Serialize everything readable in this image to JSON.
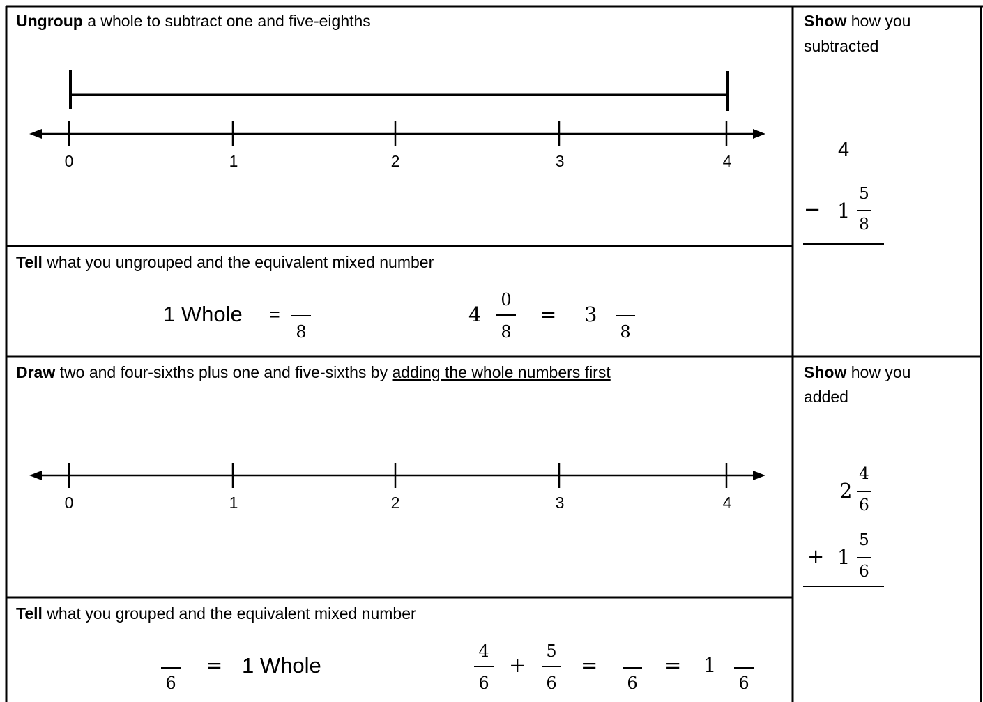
{
  "section1": {
    "prompt_bold": "Ungroup",
    "prompt_rest": " a whole to subtract one and five-eighths",
    "numberline_labels": [
      "0",
      "1",
      "2",
      "3",
      "4"
    ]
  },
  "side1": {
    "prompt_bold": "Show",
    "prompt_rest": " how you",
    "prompt_line2": "subtracted",
    "top_number": "4",
    "operator": "−",
    "whole": "1",
    "numerator": "5",
    "denominator": "8"
  },
  "section2": {
    "prompt_bold": "Tell",
    "prompt_rest": " what you ungrouped and the equivalent mixed number",
    "lhs_text": "1 Whole",
    "equals": "=",
    "lhs_denominator": "8",
    "mixed_whole": "4",
    "mixed_numerator": "0",
    "mixed_denominator": "8",
    "equals2": "=",
    "result_whole": "3",
    "result_denominator": "8"
  },
  "section3": {
    "prompt_bold": "Draw",
    "prompt_rest": " two and four-sixths plus one and five-sixths by ",
    "prompt_underlined": "adding the whole numbers first",
    "numberline_labels": [
      "0",
      "1",
      "2",
      "3",
      "4"
    ]
  },
  "side3": {
    "prompt_bold": "Show",
    "prompt_rest": " how you",
    "prompt_line2": "added",
    "first_whole": "2",
    "first_numerator": "4",
    "first_denominator": "6",
    "operator": "+",
    "second_whole": "1",
    "second_numerator": "5",
    "second_denominator": "6"
  },
  "section4": {
    "prompt_bold": "Tell",
    "prompt_rest": " what you grouped and the equivalent mixed number",
    "lhs_denominator": "6",
    "equals": "=",
    "rhs_text": "1 Whole",
    "a_numerator": "4",
    "a_denominator": "6",
    "plus": "+",
    "b_numerator": "5",
    "b_denominator": "6",
    "equals2": "=",
    "sum_denominator": "6",
    "equals3": "=",
    "result_whole": "1",
    "result_denominator": "6"
  }
}
